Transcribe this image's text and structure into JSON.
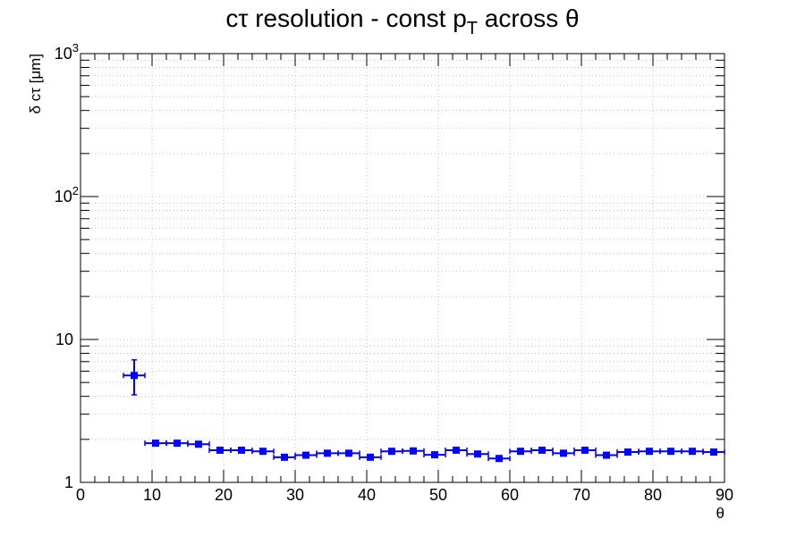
{
  "chart_data": {
    "type": "scatter",
    "title": "cτ resolution - const p",
    "title_subscript": "T",
    "title_suffix": " across θ",
    "xlabel": "θ",
    "ylabel": "δ cτ [μm]",
    "xlim": [
      0,
      90
    ],
    "ylim": [
      1,
      1000
    ],
    "y_scale": "log",
    "grid": true,
    "marker_color": "#0000ff",
    "x_tick_labels": [
      "0",
      "10",
      "20",
      "30",
      "40",
      "50",
      "60",
      "70",
      "80",
      "90"
    ],
    "y_tick_labels": [
      {
        "value": 1,
        "base": "1",
        "exp": ""
      },
      {
        "value": 10,
        "base": "10",
        "exp": ""
      },
      {
        "value": 100,
        "base": "10",
        "exp": "2"
      },
      {
        "value": 1000,
        "base": "10",
        "exp": "3"
      }
    ],
    "bin_half_width": 1.5,
    "points": [
      {
        "x": 7.5,
        "y": 5.6,
        "y_low": 4.1,
        "y_high": 7.2
      },
      {
        "x": 10.5,
        "y": 1.88
      },
      {
        "x": 13.5,
        "y": 1.88
      },
      {
        "x": 16.5,
        "y": 1.85
      },
      {
        "x": 19.5,
        "y": 1.68
      },
      {
        "x": 22.5,
        "y": 1.68
      },
      {
        "x": 25.5,
        "y": 1.65
      },
      {
        "x": 28.5,
        "y": 1.5
      },
      {
        "x": 31.5,
        "y": 1.55
      },
      {
        "x": 34.5,
        "y": 1.6
      },
      {
        "x": 37.5,
        "y": 1.6
      },
      {
        "x": 40.5,
        "y": 1.5
      },
      {
        "x": 43.5,
        "y": 1.65
      },
      {
        "x": 46.5,
        "y": 1.66
      },
      {
        "x": 49.5,
        "y": 1.56
      },
      {
        "x": 52.5,
        "y": 1.68
      },
      {
        "x": 55.5,
        "y": 1.58
      },
      {
        "x": 58.5,
        "y": 1.47
      },
      {
        "x": 61.5,
        "y": 1.65
      },
      {
        "x": 64.5,
        "y": 1.68
      },
      {
        "x": 67.5,
        "y": 1.6
      },
      {
        "x": 70.5,
        "y": 1.68
      },
      {
        "x": 73.5,
        "y": 1.55
      },
      {
        "x": 76.5,
        "y": 1.63
      },
      {
        "x": 79.5,
        "y": 1.65
      },
      {
        "x": 82.5,
        "y": 1.65
      },
      {
        "x": 85.5,
        "y": 1.65
      },
      {
        "x": 88.5,
        "y": 1.63
      }
    ]
  }
}
